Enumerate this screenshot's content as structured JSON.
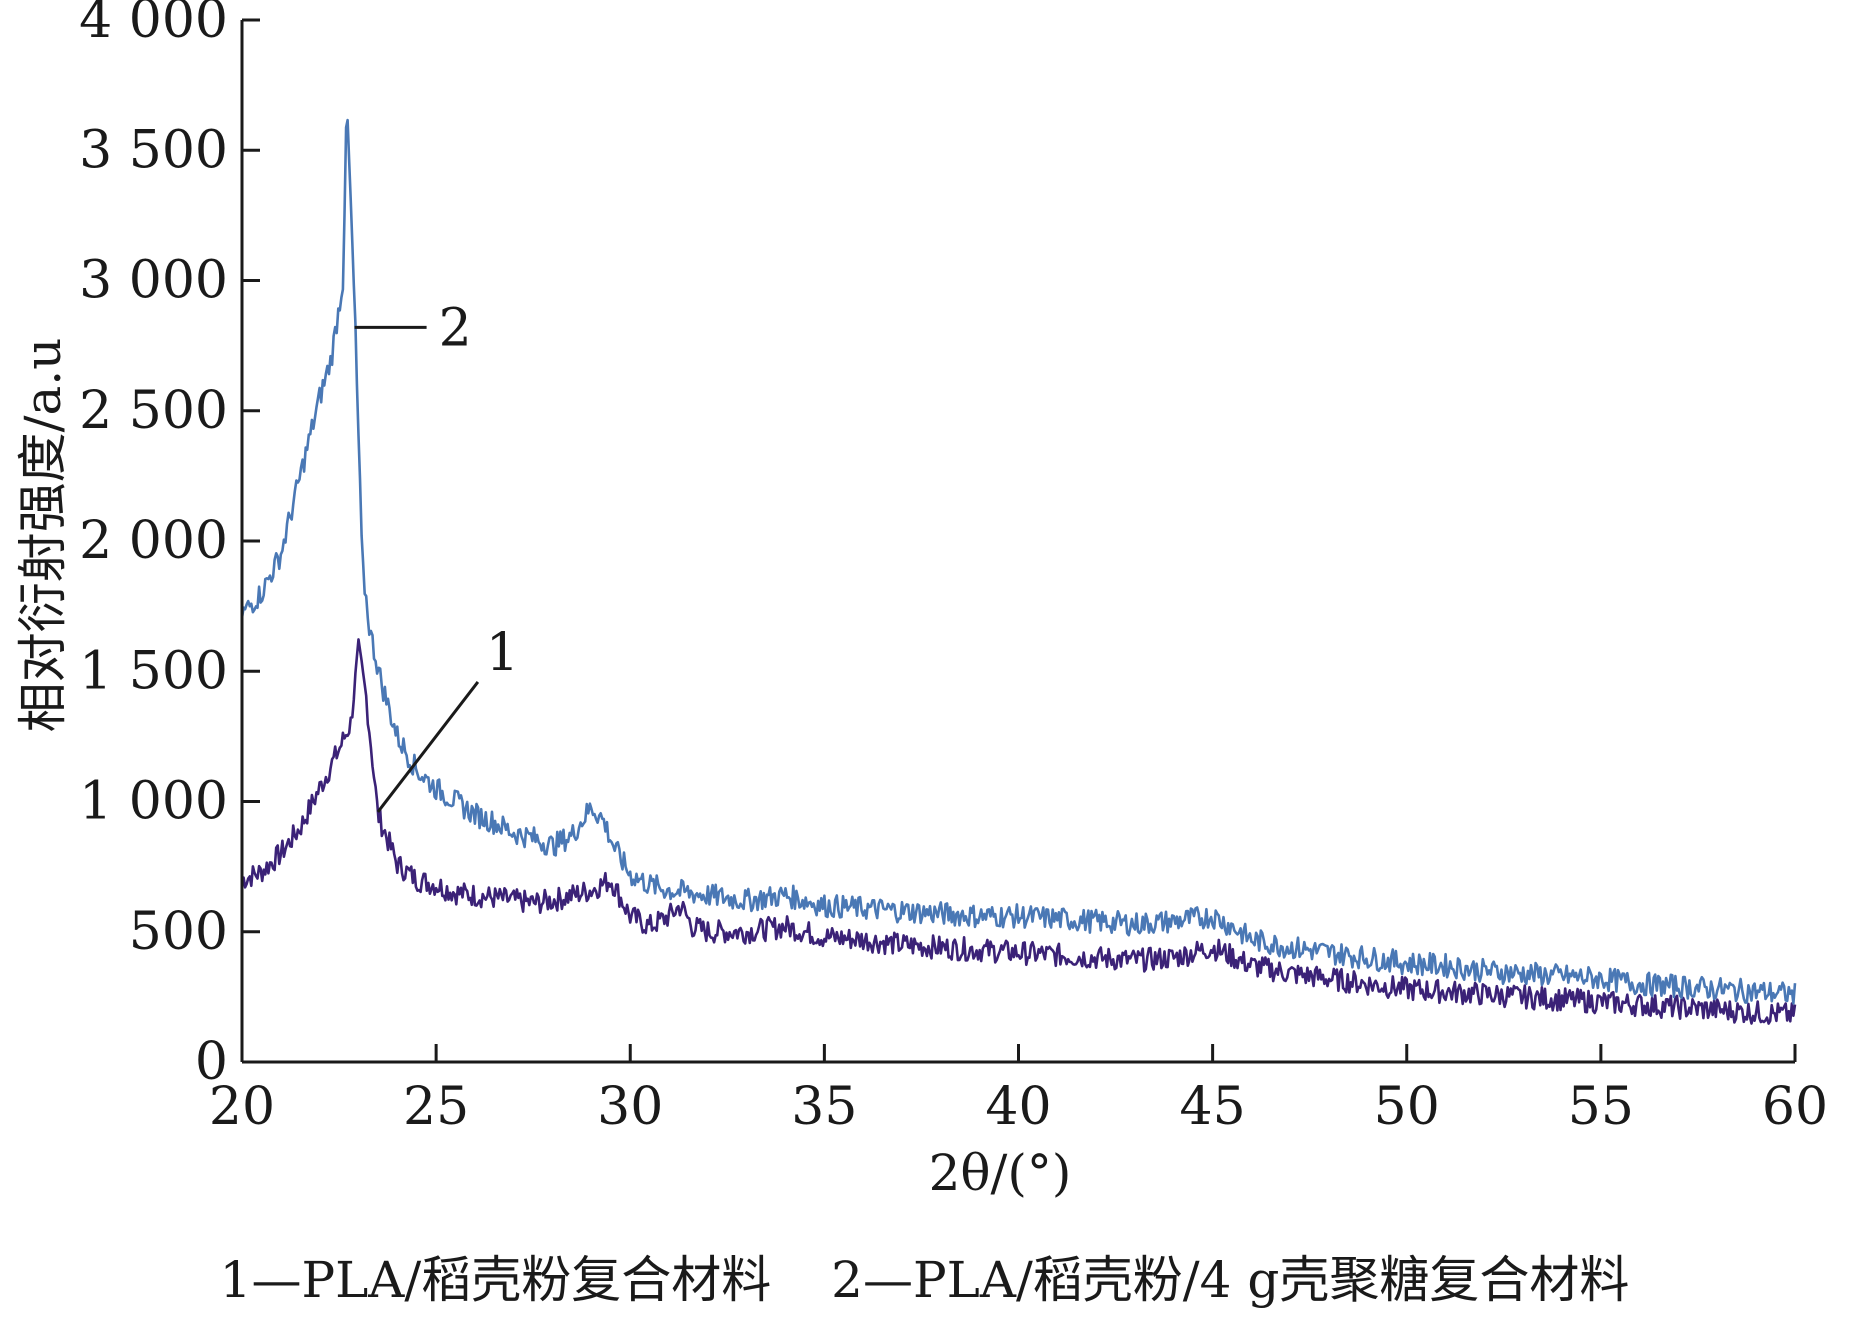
{
  "chart_data": {
    "type": "line",
    "xlabel": "2θ/(°)",
    "ylabel": "相对衍射强度/a.u",
    "xlim": [
      20,
      60
    ],
    "ylim": [
      0,
      4000
    ],
    "x_ticks": [
      20,
      25,
      30,
      35,
      40,
      45,
      50,
      55,
      60
    ],
    "y_ticks": [
      0,
      500,
      1000,
      1500,
      2000,
      2500,
      3000,
      3500,
      4000
    ],
    "x_tick_labels": [
      "20",
      "25",
      "30",
      "35",
      "40",
      "45",
      "50",
      "55",
      "60"
    ],
    "y_tick_labels": [
      "0",
      "500",
      "1 000",
      "1 500",
      "2 000",
      "2 500",
      "3 000",
      "3 500",
      "4 000"
    ],
    "grid": false,
    "series": [
      {
        "name": "1",
        "color": "#3b2277",
        "x": [
          20,
          20.5,
          21,
          21.5,
          22,
          22.5,
          22.8,
          23,
          23.2,
          23.5,
          24,
          24.5,
          25,
          25.5,
          26,
          26.5,
          27,
          27.5,
          28,
          28.5,
          29,
          29.5,
          30,
          30.5,
          31,
          31.3,
          31.6,
          32,
          33,
          34,
          35,
          36,
          37,
          38,
          39,
          40,
          41,
          42,
          43,
          44,
          45,
          46,
          47,
          48,
          49,
          50,
          51,
          52,
          53,
          54,
          55,
          56,
          57,
          58,
          59,
          60
        ],
        "values": [
          700,
          730,
          800,
          900,
          1050,
          1200,
          1300,
          1580,
          1400,
          950,
          760,
          700,
          680,
          650,
          640,
          630,
          620,
          610,
          620,
          640,
          660,
          700,
          560,
          520,
          560,
          600,
          520,
          500,
          500,
          520,
          480,
          470,
          450,
          440,
          430,
          420,
          410,
          400,
          390,
          400,
          440,
          370,
          340,
          320,
          300,
          280,
          270,
          260,
          250,
          240,
          230,
          220,
          210,
          200,
          190,
          180
        ]
      },
      {
        "name": "2",
        "color": "#4a78b5",
        "x": [
          20,
          20.5,
          21,
          21.5,
          22,
          22.3,
          22.6,
          22.7,
          22.9,
          23.1,
          23.3,
          23.6,
          24,
          24.5,
          25,
          25.5,
          26,
          26.5,
          27,
          27.5,
          28,
          28.5,
          29,
          29.3,
          29.6,
          30,
          30.5,
          31,
          32,
          33,
          34,
          35,
          36,
          37,
          38,
          39,
          40,
          41,
          42,
          43,
          44,
          45,
          45.5,
          46,
          47,
          48,
          49,
          50,
          51,
          52,
          53,
          54,
          55,
          56,
          57,
          58,
          59,
          60
        ],
        "values": [
          1720,
          1800,
          1950,
          2250,
          2550,
          2700,
          3000,
          3680,
          2900,
          1900,
          1650,
          1450,
          1250,
          1120,
          1050,
          1000,
          950,
          920,
          880,
          860,
          830,
          870,
          980,
          930,
          820,
          720,
          680,
          660,
          640,
          620,
          640,
          600,
          590,
          580,
          570,
          560,
          560,
          550,
          540,
          530,
          540,
          560,
          520,
          470,
          440,
          420,
          400,
          380,
          370,
          350,
          340,
          330,
          320,
          300,
          290,
          280,
          270,
          260
        ]
      }
    ],
    "callouts": [
      {
        "label": "1",
        "x": 23.5,
        "y": 960
      },
      {
        "label": "2",
        "x": 22.9,
        "y": 2820
      }
    ],
    "caption": [
      "1—PLA/稻壳粉复合材料",
      "2—PLA/稻壳粉/4 g壳聚糖复合材料"
    ]
  }
}
